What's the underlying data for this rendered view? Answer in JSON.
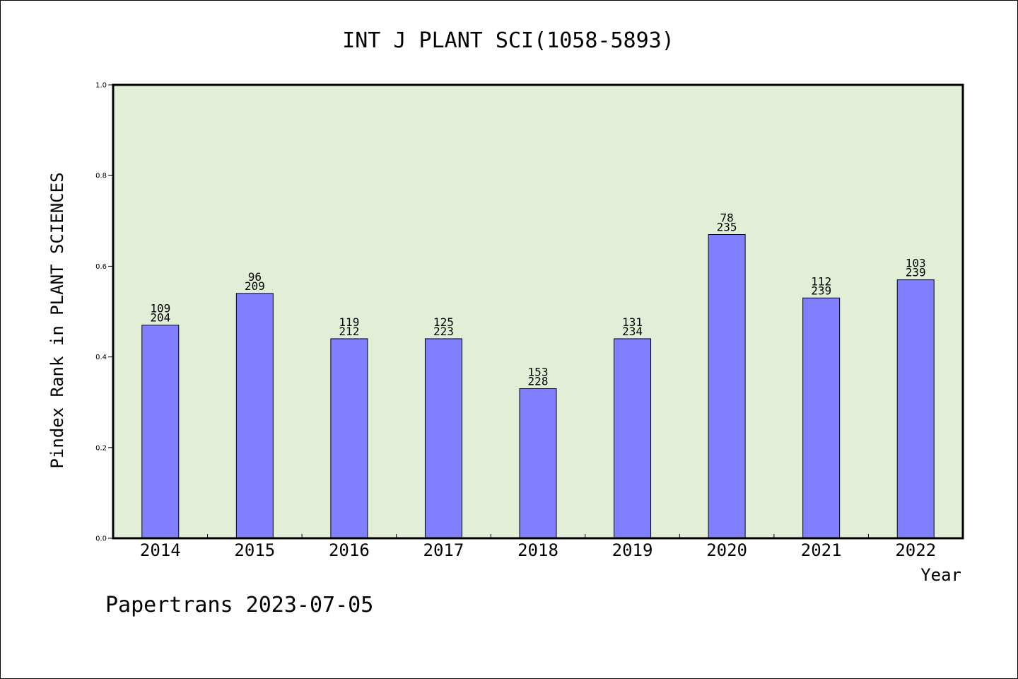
{
  "chart_data": {
    "type": "bar",
    "title": "INT J PLANT SCI(1058-5893)",
    "xlabel": "Year",
    "ylabel": "Pindex Rank in PLANT SCIENCES",
    "ylim": [
      0,
      1.0
    ],
    "yticks": [
      "0.0",
      "0.2",
      "0.4",
      "0.6",
      "0.8",
      "1.0"
    ],
    "ytick_values": [
      0,
      0.2,
      0.4,
      0.6,
      0.8,
      1.0
    ],
    "categories": [
      "2014",
      "2015",
      "2016",
      "2017",
      "2018",
      "2019",
      "2020",
      "2021",
      "2022"
    ],
    "values": [
      0.47,
      0.54,
      0.44,
      0.44,
      0.33,
      0.44,
      0.67,
      0.53,
      0.57
    ],
    "rank_labels": [
      "109",
      "96",
      "119",
      "125",
      "153",
      "131",
      "78",
      "112",
      "103"
    ],
    "total_labels": [
      "204",
      "209",
      "212",
      "223",
      "228",
      "234",
      "235",
      "239",
      "239"
    ],
    "grid": false,
    "bar_color": "#8080ff",
    "plot_background": "#e2efd6"
  },
  "footer": {
    "text": "Papertrans 2023-07-05"
  }
}
